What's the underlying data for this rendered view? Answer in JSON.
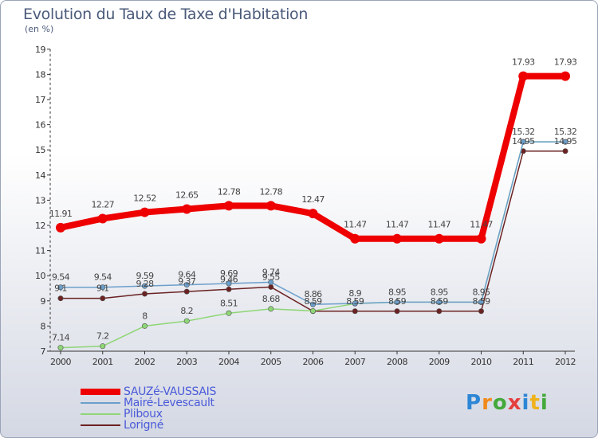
{
  "title": "Evolution du Taux de Taxe d'Habitation",
  "subtitle": "(en %)",
  "colors": {
    "sauze": "#ee0000",
    "maire": "#6c9fcb",
    "pliboux": "#8ed676",
    "lorigne": "#6b2222",
    "axis": "#333333",
    "text": "#4a5a7a",
    "legend_text": "#4a5ad8"
  },
  "chart_data": {
    "type": "line",
    "title": "Evolution du Taux de Taxe d'Habitation",
    "ylabel": "(en %)",
    "xlabel": "",
    "x": [
      "2000",
      "2001",
      "2002",
      "2003",
      "2004",
      "2005",
      "2006",
      "2007",
      "2008",
      "2009",
      "2010",
      "2011",
      "2012"
    ],
    "ylim": [
      7,
      19
    ],
    "yticks": [
      "7",
      "8",
      "9",
      "10",
      "11",
      "12",
      "13",
      "14",
      "15",
      "16",
      "17",
      "18",
      "19"
    ],
    "grid": false,
    "legend_position": "bottom-left",
    "series": [
      {
        "name": "SAUZé-VAUSSAIS",
        "color": "#ee0000",
        "values": [
          11.91,
          12.27,
          12.52,
          12.65,
          12.78,
          12.78,
          12.47,
          11.47,
          11.47,
          11.47,
          11.47,
          17.93,
          17.93
        ],
        "labels": [
          "11.91",
          "12.27",
          "12.52",
          "12.65",
          "12.78",
          "12.78",
          "12.47",
          "11.47",
          "11.47",
          "11.47",
          "11.47",
          "17.93",
          "17.93"
        ]
      },
      {
        "name": "Mairé-Levescault",
        "color": "#6c9fcb",
        "values": [
          9.54,
          9.54,
          9.59,
          9.64,
          9.69,
          9.74,
          8.86,
          8.9,
          8.95,
          8.95,
          8.95,
          15.32,
          15.32
        ],
        "labels": [
          "9.54",
          "9.54",
          "9.59",
          "9.64",
          "9.69",
          "9.74",
          "8.86",
          "8.9",
          "8.95",
          "8.95",
          "8.95",
          "15.32",
          "15.32"
        ]
      },
      {
        "name": "Pliboux",
        "color": "#8ed676",
        "values": [
          7.14,
          7.2,
          8.0,
          8.2,
          8.51,
          8.68,
          8.6,
          8.89,
          8.95,
          8.95,
          8.95,
          15.32,
          15.32
        ],
        "labels": [
          "7.14",
          "7.2",
          "8",
          "8.2",
          "8.51",
          "8.68",
          "",
          "",
          "",
          "",
          "",
          "",
          ""
        ]
      },
      {
        "name": "Lorigné",
        "color": "#6b2222",
        "values": [
          9.1,
          9.1,
          9.28,
          9.37,
          9.46,
          9.55,
          8.59,
          8.59,
          8.59,
          8.59,
          8.59,
          14.95,
          14.95
        ],
        "labels": [
          "9.1",
          "9.1",
          "9.28",
          "9.37",
          "9.46",
          "9.55",
          "8.59",
          "8.59",
          "8.59",
          "8.59",
          "8.59",
          "14.95",
          "14.95"
        ]
      }
    ]
  },
  "legend": {
    "items": [
      {
        "label": "SAUZé-VAUSSAIS",
        "color": "#ee0000",
        "weight": 8
      },
      {
        "label": "Mairé-Levescault",
        "color": "#6c9fcb",
        "weight": 2
      },
      {
        "label": "Pliboux",
        "color": "#8ed676",
        "weight": 2
      },
      {
        "label": "Lorigné",
        "color": "#6b2222",
        "weight": 2
      }
    ]
  },
  "logo": {
    "p": "P",
    "r": "r",
    "o": "o",
    "x": "x",
    "i": "i",
    "t": "t",
    "i2": "i"
  }
}
